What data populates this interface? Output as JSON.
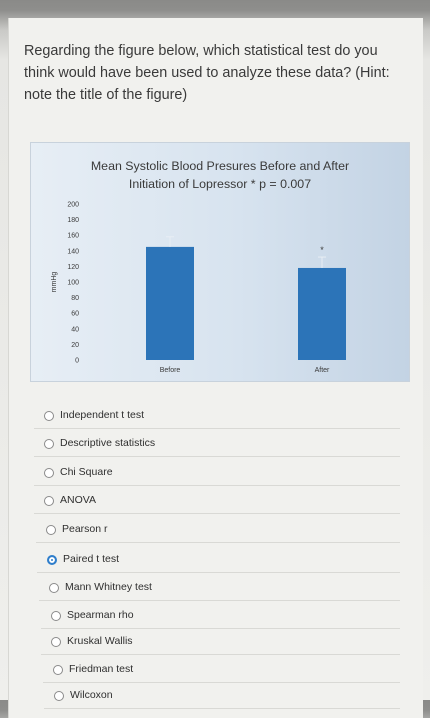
{
  "question": {
    "text": "Regarding the figure below, which statistical test do you think would have been used to analyze these data? (Hint: note the title of the figure)"
  },
  "chart_data": {
    "type": "bar",
    "title_line1": "Mean Systolic Blood Presures Before and After",
    "title_line2": "Initiation of Lopressor  * p = 0.007",
    "ylabel": "mmHg",
    "xlabel": "",
    "categories": [
      "Before",
      "After"
    ],
    "values": [
      145,
      118
    ],
    "error_upper": [
      158,
      132
    ],
    "ylim": [
      0,
      200
    ],
    "yticks": [
      "200",
      "180",
      "160",
      "140",
      "120",
      "100",
      "80",
      "60",
      "40",
      "20",
      "0"
    ],
    "significance_marker": "*",
    "bar_color": "#2c74b8",
    "grid": false,
    "legend": "none"
  },
  "answer_options": [
    {
      "label": "Independent t test",
      "selected": false
    },
    {
      "label": "Descriptive statistics",
      "selected": false
    },
    {
      "label": "Chi Square",
      "selected": false
    },
    {
      "label": "ANOVA",
      "selected": false
    },
    {
      "label": "Pearson r",
      "selected": false
    },
    {
      "label": "Paired t test",
      "selected": true
    },
    {
      "label": "Mann Whitney test",
      "selected": false
    },
    {
      "label": "Spearman rho",
      "selected": false
    },
    {
      "label": "Kruskal Wallis",
      "selected": false
    },
    {
      "label": "Friedman test",
      "selected": false
    },
    {
      "label": "Wilcoxon",
      "selected": false
    }
  ],
  "colors": {
    "radio_selected": "#2f7ecb",
    "bar": "#2c74b8"
  }
}
